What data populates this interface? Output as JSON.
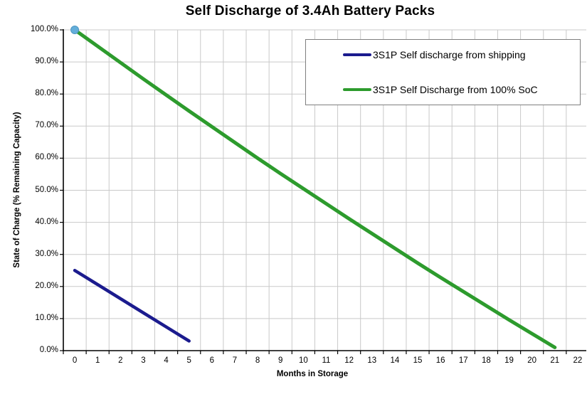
{
  "chart_data": {
    "type": "line",
    "title": "Self Discharge of 3.4Ah Battery Packs",
    "xlabel": "Months in Storage",
    "ylabel": "State of Charge (% Remaining Capacity)",
    "xlim": [
      0,
      22
    ],
    "ylim": [
      0,
      100
    ],
    "grid": true,
    "legend_position": "top-right",
    "x_tick_labels": [
      "0",
      "1",
      "2",
      "3",
      "4",
      "5",
      "6",
      "7",
      "8",
      "9",
      "10",
      "11",
      "12",
      "13",
      "14",
      "15",
      "16",
      "17",
      "18",
      "19",
      "20",
      "21",
      "22"
    ],
    "y_tick_labels": [
      "0.0%",
      "10.0%",
      "20.0%",
      "30.0%",
      "40.0%",
      "50.0%",
      "60.0%",
      "70.0%",
      "80.0%",
      "90.0%",
      "100.0%"
    ],
    "series": [
      {
        "name": "3S1P Self discharge from shipping",
        "color": "#1b1b8e",
        "stroke_width": 4.5,
        "x": [
          0,
          1,
          2,
          3,
          4,
          5
        ],
        "values": [
          25.0,
          20.6,
          16.2,
          11.8,
          7.4,
          3.0
        ]
      },
      {
        "name": "3S1P Self Discharge from 100% SoC",
        "color": "#2d9b2d",
        "stroke_width": 5,
        "x": [
          0,
          1,
          2,
          3,
          4,
          5,
          6,
          7,
          8,
          9,
          10,
          11,
          12,
          13,
          14,
          15,
          16,
          17,
          18,
          19,
          20,
          21
        ],
        "values": [
          100,
          94.9,
          89.8,
          84.7,
          79.7,
          74.7,
          69.8,
          64.9,
          60.0,
          55.2,
          50.5,
          45.8,
          41.1,
          36.5,
          31.9,
          27.3,
          22.8,
          18.4,
          14.0,
          9.6,
          5.3,
          1.0
        ]
      }
    ],
    "marker": {
      "x": 0,
      "y": 100,
      "color": "#63aeda",
      "edge_color": "#4e96c2",
      "radius": 5.5
    },
    "colors": {
      "gridline": "#c9c9c9",
      "axis": "#000000",
      "background": "#ffffff",
      "legend_border": "#7f7f7f"
    }
  }
}
